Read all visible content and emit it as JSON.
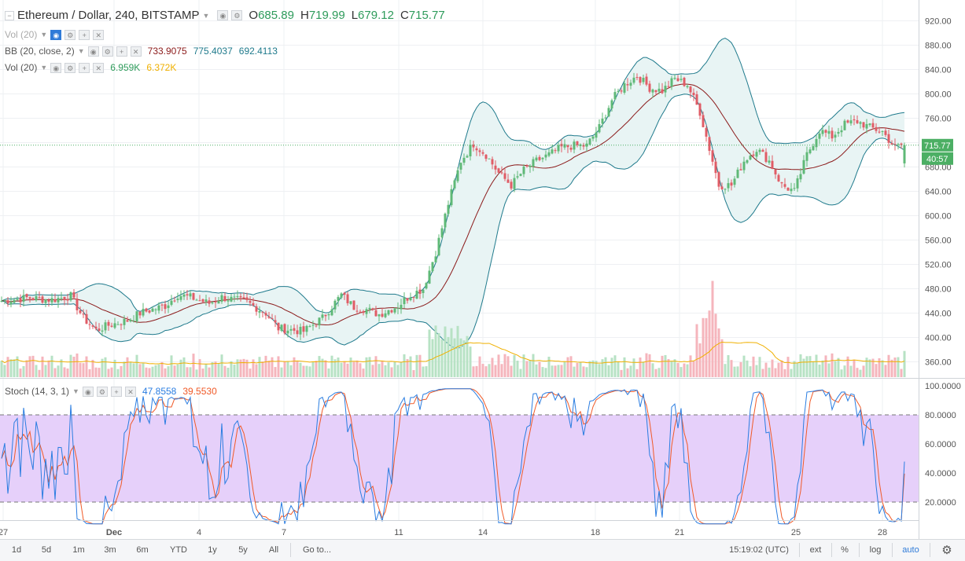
{
  "colors": {
    "up": "#5fb977",
    "down": "#e05c66",
    "up_vol": "#b7e2c4",
    "down_vol": "#f5b5bc",
    "bb_band": "#1f7a8c",
    "bb_basis": "#8b1a1a",
    "bb_fill": "#e8f4f4",
    "vol_ma": "#f0b000",
    "stoch_k": "#2a7de1",
    "stoch_d": "#f05a28",
    "stoch_bg": "#e6d0fa",
    "grid": "#eef0f3",
    "price_tag": "#4caf64"
  },
  "header": {
    "symbol": "Ethereum / Dollar, 240, BITSTAMP",
    "o_label": "O",
    "o": "685.89",
    "h_label": "H",
    "h": "719.99",
    "l_label": "L",
    "l": "679.12",
    "c_label": "C",
    "c": "715.77"
  },
  "legends": {
    "vol_collapsed": "Vol (20)",
    "bb": {
      "label": "BB (20, close, 2)",
      "v1": "733.9075",
      "v2": "775.4037",
      "v3": "692.4113"
    },
    "vol": {
      "label": "Vol (20)",
      "v1": "6.959K",
      "v2": "6.372K"
    },
    "stoch": {
      "label": "Stoch (14, 3, 1)",
      "k": "47.8558",
      "d": "39.5530"
    }
  },
  "price_axis": {
    "ticks": [
      "920.00",
      "880.00",
      "840.00",
      "800.00",
      "760.00",
      "720.00",
      "680.00",
      "640.00",
      "600.00",
      "560.00",
      "520.00",
      "480.00",
      "440.00",
      "400.00",
      "360.00"
    ],
    "last_price": "715.77",
    "countdown": "40:57"
  },
  "stoch_axis": {
    "ticks": [
      "100.0000",
      "80.0000",
      "60.0000",
      "40.0000",
      "20.0000"
    ]
  },
  "time_axis": {
    "labels": [
      "27",
      "Dec",
      "4",
      "7",
      "11",
      "14",
      "18",
      "21",
      "25",
      "28"
    ]
  },
  "chart_data": [
    {
      "type": "candlestick",
      "title": "Ethereum / Dollar, 240, BITSTAMP",
      "ylim": [
        340,
        930
      ],
      "x_labels": [
        "27",
        "Dec",
        "4",
        "7",
        "11",
        "14",
        "18",
        "21",
        "25",
        "28"
      ],
      "last": {
        "open": 685.89,
        "high": 719.99,
        "low": 679.12,
        "close": 715.77
      },
      "close_anchors": [
        [
          0,
          460
        ],
        [
          8,
          465
        ],
        [
          16,
          462
        ],
        [
          22,
          468
        ],
        [
          26,
          432
        ],
        [
          30,
          412
        ],
        [
          34,
          420
        ],
        [
          40,
          428
        ],
        [
          44,
          440
        ],
        [
          52,
          452
        ],
        [
          56,
          470
        ],
        [
          60,
          466
        ],
        [
          66,
          456
        ],
        [
          70,
          466
        ],
        [
          78,
          458
        ],
        [
          84,
          440
        ],
        [
          88,
          415
        ],
        [
          96,
          410
        ],
        [
          102,
          432
        ],
        [
          108,
          470
        ],
        [
          112,
          450
        ],
        [
          116,
          446
        ],
        [
          120,
          438
        ],
        [
          126,
          452
        ],
        [
          130,
          470
        ],
        [
          134,
          480
        ],
        [
          138,
          540
        ],
        [
          142,
          620
        ],
        [
          146,
          690
        ],
        [
          150,
          718
        ],
        [
          154,
          700
        ],
        [
          158,
          670
        ],
        [
          162,
          650
        ],
        [
          166,
          675
        ],
        [
          170,
          690
        ],
        [
          174,
          700
        ],
        [
          178,
          712
        ],
        [
          182,
          715
        ],
        [
          186,
          715
        ],
        [
          190,
          745
        ],
        [
          194,
          790
        ],
        [
          198,
          815
        ],
        [
          202,
          830
        ],
        [
          206,
          810
        ],
        [
          210,
          805
        ],
        [
          214,
          825
        ],
        [
          218,
          815
        ],
        [
          222,
          770
        ],
        [
          226,
          690
        ],
        [
          228,
          650
        ],
        [
          232,
          650
        ],
        [
          236,
          690
        ],
        [
          240,
          710
        ],
        [
          244,
          690
        ],
        [
          248,
          650
        ],
        [
          252,
          640
        ],
        [
          256,
          700
        ],
        [
          260,
          740
        ],
        [
          264,
          730
        ],
        [
          268,
          750
        ],
        [
          272,
          755
        ],
        [
          276,
          745
        ],
        [
          280,
          738
        ],
        [
          284,
          712
        ],
        [
          286,
          716
        ]
      ],
      "bollinger": {
        "period": 20,
        "stddev": 2,
        "basis": 733.9075,
        "upper": 775.4037,
        "lower": 692.4113
      },
      "volume": {
        "label": "Vol (20)",
        "value": "6.959K",
        "ma": "6.372K"
      }
    },
    {
      "type": "line",
      "title": "Stoch (14, 3, 1)",
      "ylim": [
        0,
        100
      ],
      "levels": [
        80,
        20
      ],
      "series": [
        {
          "name": "K",
          "last": 47.8558
        },
        {
          "name": "D",
          "last": 39.553
        }
      ]
    }
  ],
  "toolbar": {
    "ranges": [
      "1d",
      "5d",
      "1m",
      "3m",
      "6m",
      "YTD",
      "1y",
      "5y",
      "All"
    ],
    "goto": "Go to...",
    "time": "15:19:02 (UTC)",
    "right": [
      "ext",
      "%",
      "log",
      "auto"
    ],
    "settings_icon": "gear-icon"
  }
}
